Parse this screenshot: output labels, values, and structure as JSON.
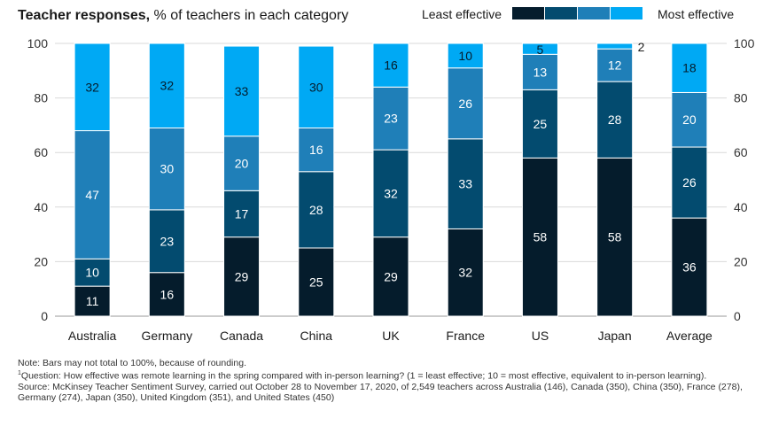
{
  "header": {
    "title_bold": "Teacher responses,",
    "title_rest": " % of teachers in each category",
    "legend_left": "Least effective",
    "legend_right": "Most effective"
  },
  "colors": {
    "c1": "#051c2c",
    "c2": "#034b6f",
    "c3": "#1f7fb8",
    "c4": "#00a9f4",
    "grid": "#d9d9d9",
    "axis_text": "#333333"
  },
  "chart_data": {
    "type": "bar",
    "stacked": true,
    "orientation": "vertical",
    "categories": [
      "Australia",
      "Germany",
      "Canada",
      "China",
      "UK",
      "France",
      "US",
      "Japan",
      "Average"
    ],
    "series": [
      {
        "values": [
          11,
          16,
          29,
          25,
          29,
          32,
          58,
          58,
          36
        ],
        "color": "#051c2c"
      },
      {
        "values": [
          10,
          23,
          17,
          28,
          32,
          33,
          25,
          28,
          26
        ],
        "color": "#034b6f"
      },
      {
        "values": [
          47,
          30,
          20,
          16,
          23,
          26,
          13,
          12,
          20
        ],
        "color": "#1f7fb8"
      },
      {
        "values": [
          32,
          32,
          33,
          30,
          16,
          10,
          5,
          2,
          18
        ],
        "color": "#00a9f4"
      }
    ],
    "ylim": [
      0,
      100
    ],
    "yticks": [
      "0",
      "20",
      "40",
      "60",
      "80",
      "100"
    ],
    "grid": true,
    "axes": "left-and-right",
    "legend": "top-right"
  },
  "notes": {
    "note": "Note: Bars may not total to 100%, because of rounding.",
    "question_marker": "1",
    "question": "Question: How effective was remote learning in the spring compared with in-person learning? (1 = least effective; 10 = most effective, equivalent to in-person learning).",
    "source": "Source: McKinsey Teacher Sentiment Survey, carried out October 28 to November 17, 2020, of 2,549 teachers across Australia (146), Canada (350), China (350), France (278), Germany (274), Japan (350), United Kingdom (351), and United States (450)"
  }
}
